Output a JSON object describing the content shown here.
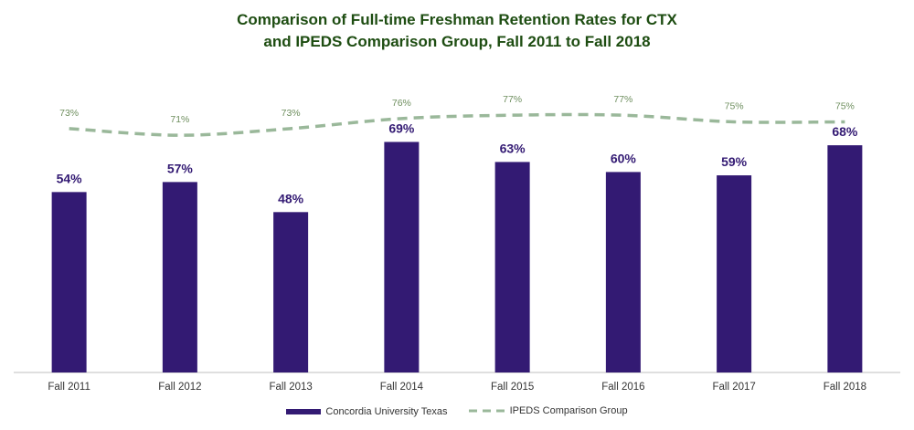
{
  "chart_data": {
    "type": "bar",
    "title_line1": "Comparison of Full-time Freshman Retention Rates for CTX",
    "title_line2": "and IPEDS Comparison Group, Fall 2011 to Fall 2018",
    "categories": [
      "Fall 2011",
      "Fall 2012",
      "Fall 2013",
      "Fall 2014",
      "Fall 2015",
      "Fall 2016",
      "Fall 2017",
      "Fall 2018"
    ],
    "series": [
      {
        "name": "Concordia University Texas",
        "type": "bar",
        "values": [
          54,
          57,
          48,
          69,
          63,
          60,
          59,
          68
        ],
        "labels": [
          "54%",
          "57%",
          "48%",
          "69%",
          "63%",
          "60%",
          "59%",
          "68%"
        ],
        "color": "#331a73"
      },
      {
        "name": "IPEDS Comparison Group",
        "type": "line",
        "style": "dashed",
        "values": [
          73,
          71,
          73,
          76,
          77,
          77,
          75,
          75
        ],
        "labels": [
          "73%",
          "71%",
          "73%",
          "76%",
          "77%",
          "77%",
          "75%",
          "75%"
        ],
        "color": "#9ab89a"
      }
    ],
    "ylim": [
      0,
      100
    ],
    "grid": false,
    "legend_position": "bottom"
  }
}
